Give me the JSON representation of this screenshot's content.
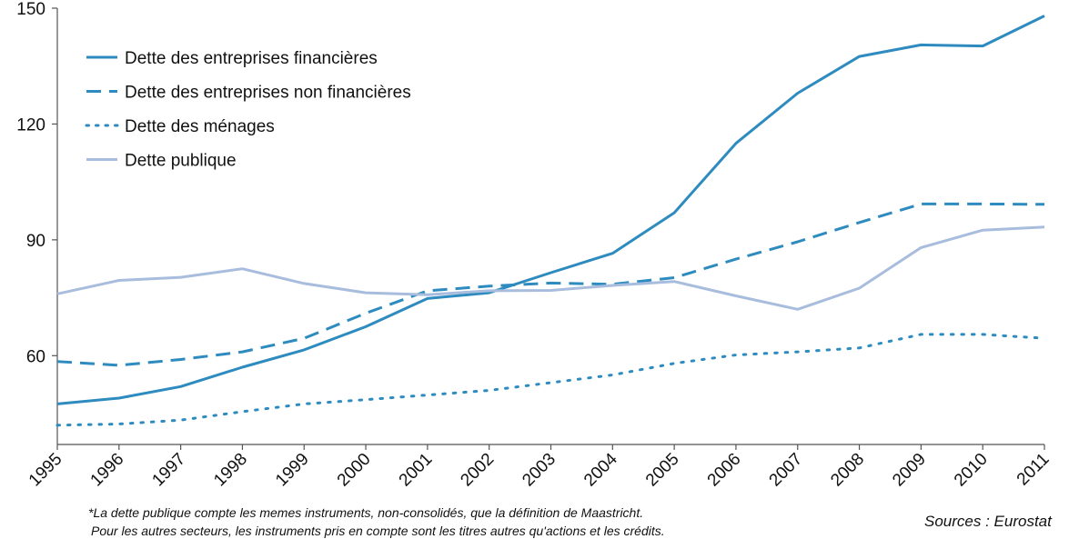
{
  "chart_data": {
    "type": "line",
    "x": [
      "1995",
      "1996",
      "1997",
      "1998",
      "1999",
      "2000",
      "2001",
      "2002",
      "2003",
      "2004",
      "2005",
      "2006",
      "2007",
      "2008",
      "2009",
      "2010",
      "2011"
    ],
    "ylim": [
      37,
      150
    ],
    "yticks": [
      60,
      90,
      120,
      150
    ],
    "grid": false,
    "legend_position": "top-left",
    "series": [
      {
        "name": "Dette des entreprises financières",
        "style": "solid",
        "color": "#2e8bbf",
        "values": [
          47.5,
          49.0,
          52.0,
          57.0,
          61.5,
          67.5,
          74.8,
          76.3,
          81.5,
          86.5,
          97.0,
          115.0,
          128.0,
          137.5,
          140.5,
          140.2,
          148.0
        ]
      },
      {
        "name": "Dette des entreprises non financières",
        "style": "dashed",
        "color": "#2e8bbf",
        "values": [
          58.5,
          57.5,
          59.0,
          61.0,
          64.5,
          71.0,
          76.8,
          78.0,
          78.8,
          78.5,
          80.2,
          85.0,
          89.5,
          94.5,
          99.3,
          99.3,
          99.2
        ]
      },
      {
        "name": "Dette des ménages",
        "style": "dotted",
        "color": "#2e8bbf",
        "values": [
          42.0,
          42.3,
          43.3,
          45.5,
          47.5,
          48.6,
          49.8,
          51.0,
          53.0,
          55.0,
          58.0,
          60.2,
          61.0,
          62.0,
          65.5,
          65.5,
          64.5
        ]
      },
      {
        "name": "Dette publique",
        "style": "solid",
        "color": "#a8bddd",
        "values": [
          76.0,
          79.5,
          80.3,
          82.5,
          78.7,
          76.3,
          75.8,
          76.8,
          76.9,
          78.2,
          79.2,
          75.5,
          72.0,
          77.5,
          88.0,
          92.5,
          93.3
        ]
      }
    ]
  },
  "footnote": {
    "line1": "*La dette publique compte les memes instruments, non-consolidés, que la définition de Maastricht.",
    "line2": "Pour les autres secteurs, les instruments pris en compte sont les titres autres qu'actions et les crédits."
  },
  "source": "Sources : Eurostat"
}
